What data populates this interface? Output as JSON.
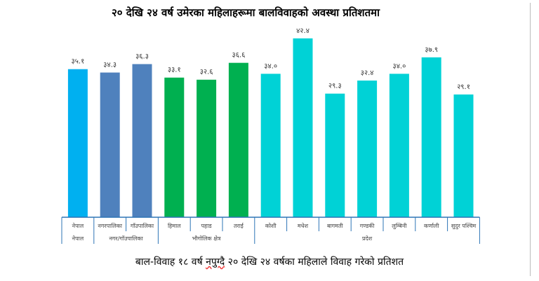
{
  "chart_data": {
    "type": "bar",
    "title": "२० देखि २४ वर्ष उमेरका महिलाहरूमा बालविवाहको अवस्था प्रतिशतमा",
    "xlabel": "बाल-विवाह १८ वर्ष नपुग्दै २० देखि २४ वर्षका महिलाले विवाह गरेको प्रतिशत",
    "ylabel": "",
    "ylim": [
      0,
      51.5
    ],
    "categories": [
      "नेपाल",
      "नगरपालिका",
      "गाँउपालिका",
      "हिमाल",
      "पहाड",
      "तराई",
      "कोशी",
      "मधेश",
      "बागमती",
      "गण्डकी",
      "लुम्बिनी",
      "कर्णाली",
      "सुदुर पश्चिम"
    ],
    "values": [
      35.1,
      34.3,
      36.3,
      33.1,
      32.6,
      36.6,
      34.0,
      42.4,
      29.3,
      32.4,
      34.0,
      37.9,
      29.1
    ],
    "value_labels": [
      "३५.१",
      "३४.३",
      "३६.३",
      "३३.१",
      "३२.६",
      "३६.६",
      "३४.०",
      "४२.४",
      "२९.३",
      "३२.४",
      "३४.०",
      "३७.९",
      "२९.१"
    ],
    "colors": [
      "#00b0f0",
      "#4f81bd",
      "#4f81bd",
      "#00b050",
      "#00b050",
      "#00b050",
      "#00d2d6",
      "#00d2d6",
      "#00d2d6",
      "#00d2d6",
      "#00d2d6",
      "#00d2d6",
      "#00d2d6"
    ],
    "groups": [
      {
        "label": "नेपाल",
        "start": 0,
        "end": 0
      },
      {
        "label": "नगर/गाँउपालिका",
        "start": 1,
        "end": 2
      },
      {
        "label": "भौगोलिक क्षेत्र",
        "start": 3,
        "end": 5
      },
      {
        "label": "प्रदेश",
        "start": 6,
        "end": 12
      }
    ]
  },
  "caption_parts": {
    "a": "बाल-विवाह १८ वर्ष ",
    "b": "नपुग्दै",
    "c": " २० देखि २४ वर्षका महिलाले विवाह गरेको प्रतिशत"
  }
}
